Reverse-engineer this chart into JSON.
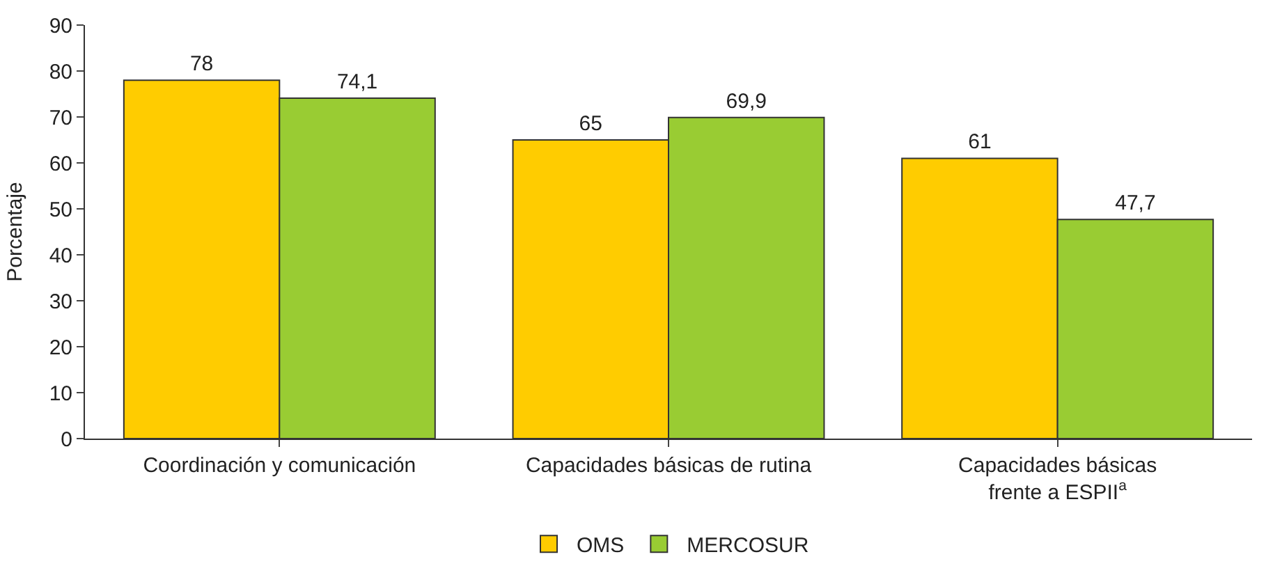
{
  "chart_data": {
    "type": "bar",
    "ylabel": "Porcentaje",
    "categories": [
      "Coordinación y comunicación",
      "Capacidades básicas de rutina",
      "Capacidades básicas\nfrente a ESPII$^{a}$"
    ],
    "series": [
      {
        "name": "OMS",
        "color": "#ffcc00",
        "values": [
          78,
          65,
          61
        ],
        "value_labels": [
          "78",
          "65",
          "61"
        ]
      },
      {
        "name": "MERCOSUR",
        "color": "#99cc33",
        "values": [
          74.1,
          69.9,
          47.7
        ],
        "value_labels": [
          "74,1",
          "69,9",
          "47,7"
        ]
      }
    ],
    "ylim": [
      0,
      90
    ],
    "yticks": [
      0,
      10,
      20,
      30,
      40,
      50,
      60,
      70,
      80,
      90
    ],
    "legend": "bottom"
  }
}
